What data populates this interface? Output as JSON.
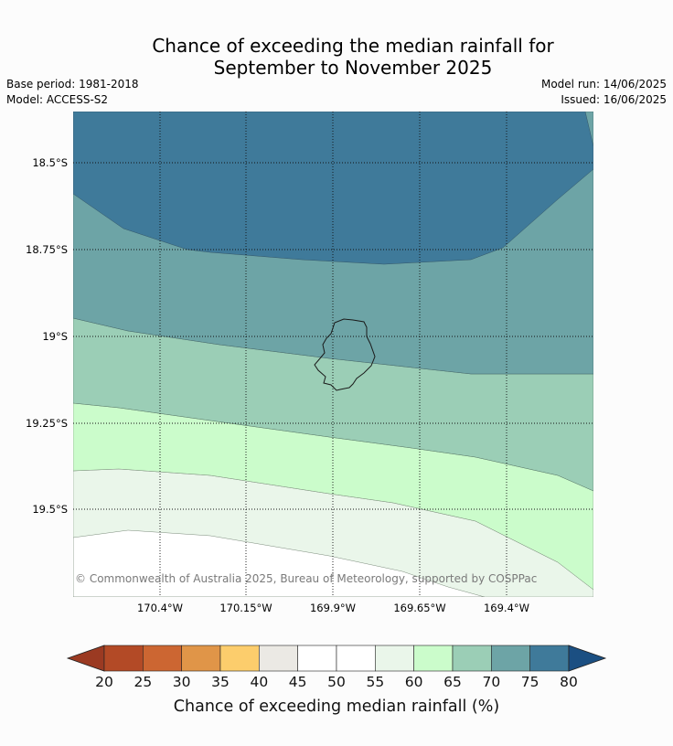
{
  "title": {
    "line1": "Chance of exceeding the median rainfall for",
    "line2": "September to November 2025"
  },
  "meta": {
    "base_period": "Base period: 1981-2018",
    "model": "Model: ACCESS-S2",
    "model_run": "Model run: 14/06/2025",
    "issued": "Issued: 16/06/2025"
  },
  "map": {
    "lat_labels": [
      "18.5°S",
      "18.75°S",
      "19°S",
      "19.25°S",
      "19.5°S"
    ],
    "lon_labels": [
      "170.4°W",
      "170.15°W",
      "169.9°W",
      "169.65°W",
      "169.4°W"
    ],
    "copyright": "© Commonwealth of Australia 2025, Bureau of Meteorology, supported by COSPPac",
    "grid": "dotted"
  },
  "colorbar": {
    "ticks": [
      "20",
      "25",
      "30",
      "35",
      "40",
      "45",
      "50",
      "55",
      "60",
      "65",
      "70",
      "75",
      "80"
    ],
    "label": "Chance of exceeding median rainfall (%)",
    "colors": [
      "#9b3a22",
      "#b34a26",
      "#cc6632",
      "#e09548",
      "#fccd6c",
      "#ebe9e4",
      "#ffffff",
      "#ffffff",
      "#eaf6ea",
      "#cbfccb",
      "#9bceb6",
      "#6da4a6",
      "#3f7a9a",
      "#1b4f82"
    ]
  },
  "zone_colors": {
    "above_75": "#3f7a9a",
    "70_75": "#6da4a6",
    "65_70": "#9bceb6",
    "60_65": "#cbfccb",
    "55_60": "#eaf6ea",
    "50_55": "#ffffff"
  }
}
